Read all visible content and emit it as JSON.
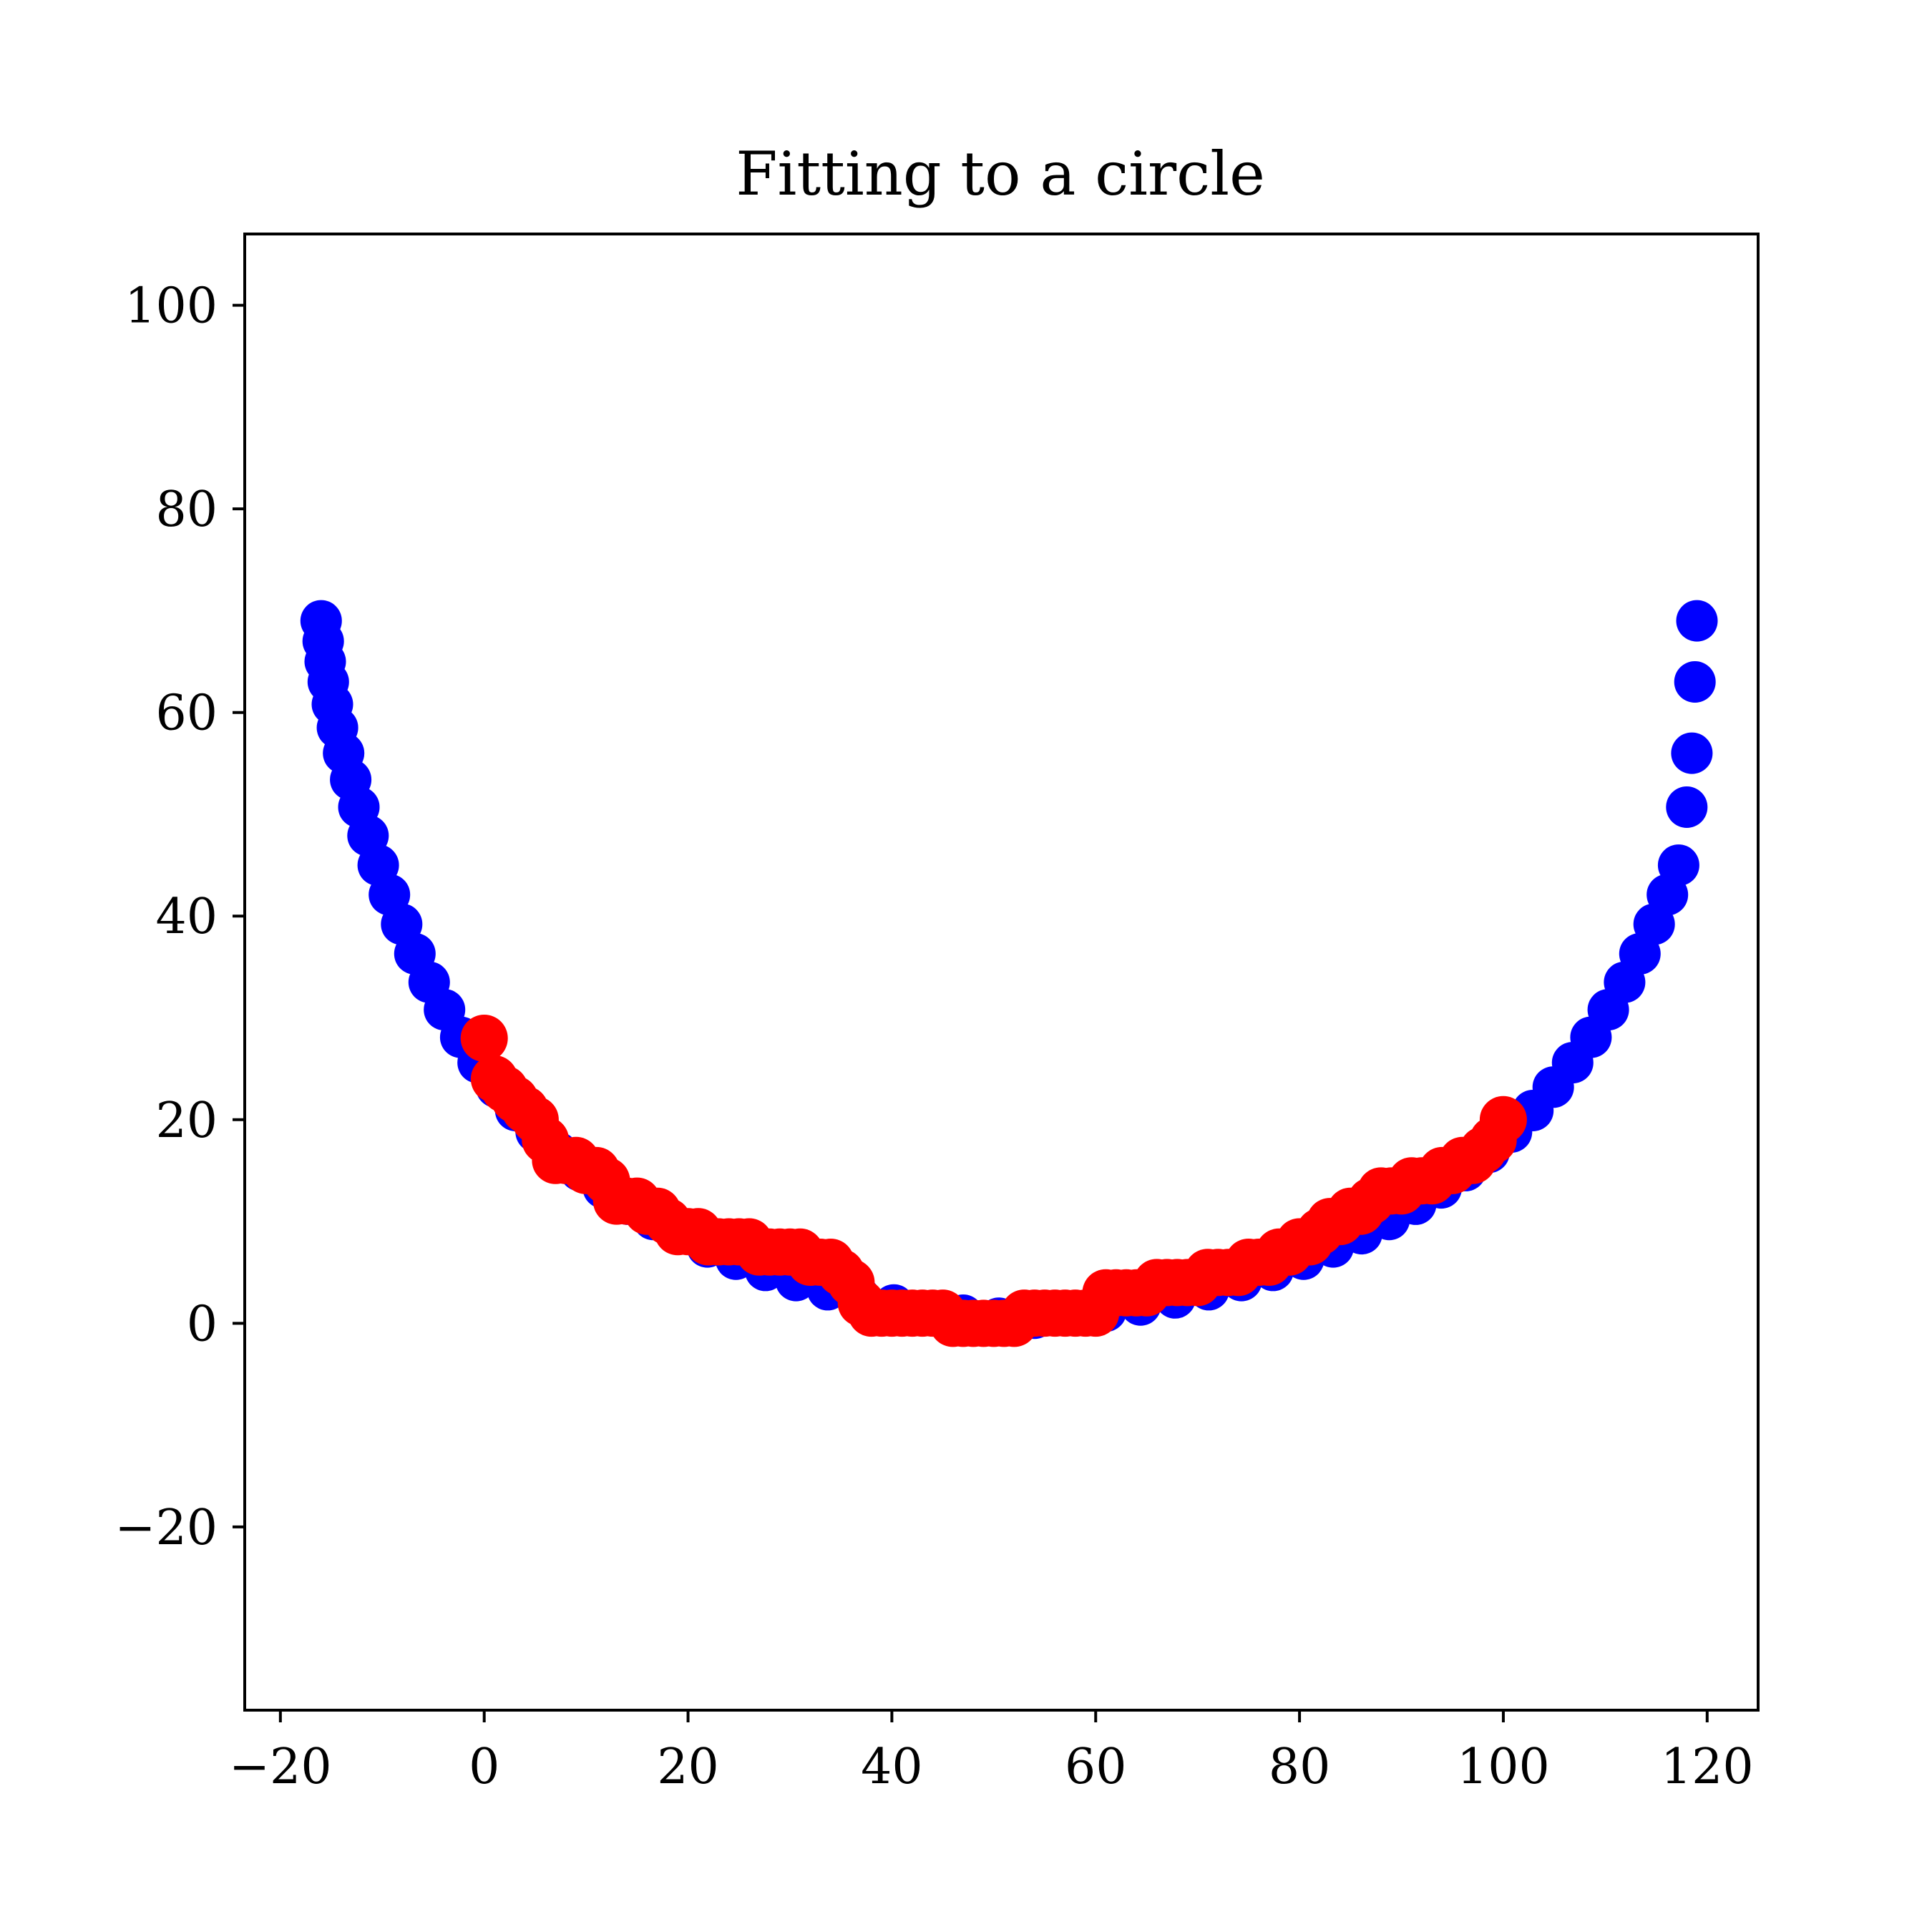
{
  "chart_data": {
    "type": "scatter",
    "title": "Fitting to a circle",
    "xlabel": "",
    "ylabel": "",
    "xlim": [
      -23.5,
      125.0
    ],
    "ylim": [
      -38.0,
      107.0
    ],
    "xticks": [
      -20,
      0,
      20,
      40,
      60,
      80,
      100,
      120
    ],
    "yticks": [
      -20,
      0,
      20,
      40,
      60,
      80,
      100
    ],
    "xtick_labels": [
      "−20",
      "0",
      "20",
      "40",
      "60",
      "80",
      "100",
      "120"
    ],
    "ytick_labels": [
      "−20",
      "0",
      "20",
      "40",
      "60",
      "80",
      "100"
    ],
    "grid": false,
    "legend": "none",
    "series": [
      {
        "color": "#0000ff",
        "marker_size": "medium",
        "description_of_shape": "fitted circle arc",
        "x": [
          -16.0,
          -15.8,
          -15.6,
          -15.3,
          -14.9,
          -14.4,
          -13.8,
          -13.1,
          -12.3,
          -11.4,
          -10.4,
          -9.3,
          -8.1,
          -6.8,
          -5.4,
          -3.9,
          -2.3,
          -0.6,
          1.2,
          3.1,
          5.1,
          7.2,
          9.4,
          11.7,
          14.1,
          16.6,
          19.2,
          21.9,
          24.7,
          27.6,
          30.6,
          33.7,
          36.9,
          40.2,
          43.6,
          47.0,
          50.5,
          54.0,
          57.5,
          61.0,
          64.4,
          67.8,
          71.1,
          74.3,
          77.4,
          80.4,
          83.3,
          86.1,
          88.8,
          91.4,
          93.9,
          96.3,
          98.6,
          100.8,
          102.9,
          104.9,
          106.8,
          108.6,
          110.3,
          111.9,
          113.4,
          114.8,
          116.1,
          117.2,
          118.0,
          118.5,
          118.8,
          119.0
        ],
        "y": [
          69.0,
          67.0,
          65.0,
          63.0,
          60.8,
          58.5,
          56.0,
          53.4,
          50.7,
          47.9,
          45.0,
          42.1,
          39.2,
          36.3,
          33.5,
          30.8,
          28.1,
          25.6,
          23.2,
          20.9,
          18.8,
          16.8,
          15.0,
          13.3,
          11.7,
          10.2,
          8.8,
          7.5,
          6.3,
          5.2,
          4.2,
          3.3,
          2.5,
          1.8,
          1.2,
          0.8,
          0.5,
          0.5,
          0.8,
          1.2,
          1.8,
          2.5,
          3.3,
          4.2,
          5.2,
          6.3,
          7.5,
          8.8,
          10.2,
          11.7,
          13.3,
          15.0,
          16.8,
          18.8,
          20.9,
          23.2,
          25.6,
          28.1,
          30.8,
          33.5,
          36.3,
          39.2,
          42.1,
          45.0,
          50.7,
          56.0,
          63.0,
          69.0
        ]
      },
      {
        "color": "#ff0000",
        "marker_size": "large",
        "description_of_shape": "noisy data points",
        "x": [
          0,
          1,
          2,
          3,
          4,
          5,
          6,
          7,
          8,
          9,
          10,
          11,
          12,
          13,
          14,
          15,
          16,
          17,
          18,
          19,
          20,
          21,
          22,
          23,
          24,
          25,
          26,
          27,
          28,
          29,
          30,
          31,
          32,
          33,
          34,
          35,
          36,
          37,
          38,
          39,
          40,
          41,
          42,
          43,
          44,
          45,
          46,
          47,
          48,
          49,
          50,
          51,
          52,
          53,
          54,
          55,
          56,
          57,
          58,
          59,
          60,
          61,
          62,
          63,
          64,
          65,
          66,
          67,
          68,
          69,
          70,
          71,
          72,
          73,
          74,
          75,
          76,
          77,
          78,
          79,
          80,
          81,
          82,
          83,
          84,
          85,
          86,
          87,
          88,
          89,
          90,
          91,
          92,
          93,
          94,
          95,
          96,
          97,
          98,
          99,
          100
        ],
        "y": [
          28,
          24,
          23,
          22,
          21,
          20,
          18,
          16,
          16,
          16,
          15,
          15,
          14,
          12,
          12,
          12,
          11,
          11,
          10,
          9,
          9,
          9,
          8,
          8,
          8,
          8,
          8,
          7,
          7,
          7,
          7,
          7,
          6,
          6,
          6,
          5,
          4,
          2,
          1,
          1,
          1,
          1,
          1,
          1,
          1,
          1,
          0,
          0,
          0,
          0,
          0,
          0,
          0,
          1,
          1,
          1,
          1,
          1,
          1,
          1,
          1,
          3,
          3,
          3,
          3,
          3,
          4,
          4,
          4,
          4,
          4,
          5,
          5,
          5,
          5,
          6,
          6,
          6,
          7,
          7,
          8,
          8,
          9,
          10,
          10,
          11,
          11,
          12,
          13,
          13,
          13,
          14,
          14,
          14,
          15,
          15,
          16,
          16,
          17,
          18,
          20
        ]
      }
    ]
  }
}
